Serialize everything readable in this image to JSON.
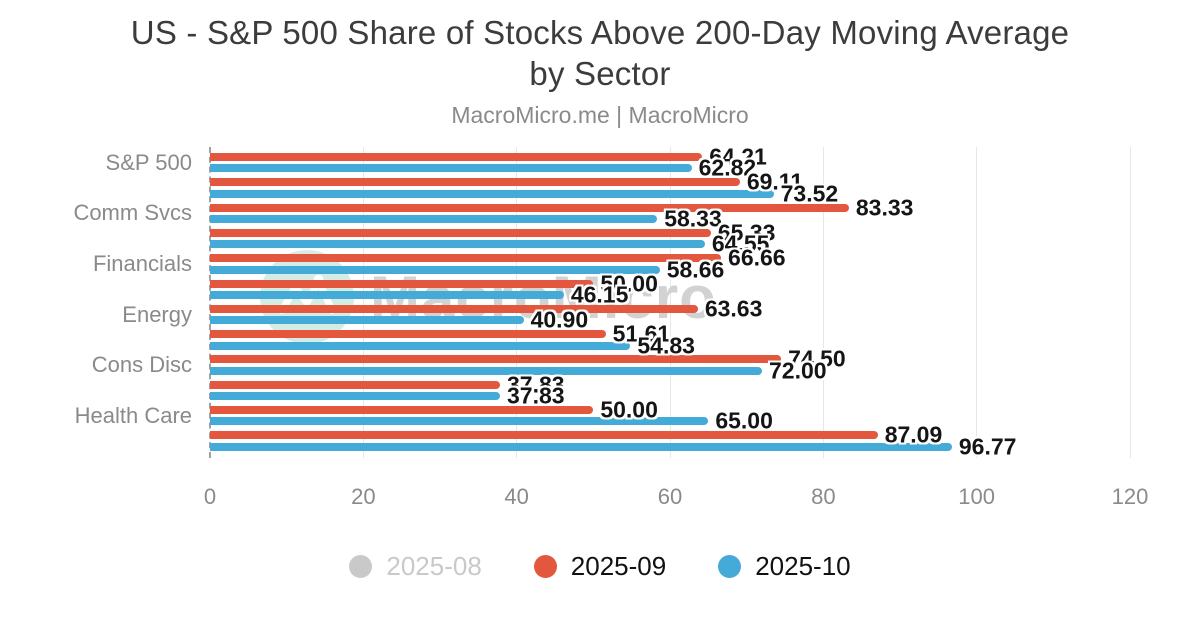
{
  "title": {
    "line1": "US - S&P 500 Share of Stocks Above 200-Day Moving Average",
    "line2": "by Sector"
  },
  "subtitle": "MacroMicro.me | MacroMicro",
  "watermark": {
    "text": "MacroMicro",
    "icon": "macromicro-logo"
  },
  "colors": {
    "series_red": "#e2573e",
    "series_blue": "#44abd9",
    "disabled_gray": "#c9c9c9",
    "grid": "#e7e7e7",
    "axis_dash": "#a2a2a2",
    "value_label": "#151515",
    "axis_text": "#8a8a8a",
    "title_text": "#3c3c3c",
    "watermark_mint": "#cdebe0",
    "watermark_gray": "#d2d2d2"
  },
  "legend": {
    "items": [
      {
        "label": "2025-08",
        "color": "#c9c9c9",
        "text_color": "#c9c9c9",
        "disabled": true
      },
      {
        "label": "2025-09",
        "color": "#e2573e",
        "text_color": "#111111",
        "disabled": false
      },
      {
        "label": "2025-10",
        "color": "#44abd9",
        "text_color": "#111111",
        "disabled": false
      }
    ]
  },
  "x_axis": {
    "ticks": [
      0,
      20,
      40,
      60,
      80,
      100,
      120
    ],
    "min": 0,
    "max": 120
  },
  "chart_data": {
    "type": "bar",
    "orientation": "horizontal",
    "title": "US - S&P 500 Share of Stocks Above 200-Day Moving Average by Sector",
    "subtitle": "MacroMicro.me | MacroMicro",
    "xlabel": "",
    "ylabel": "",
    "xlim": [
      0,
      120
    ],
    "grid": true,
    "legend_position": "bottom",
    "value_label_format": "0.00",
    "categories": [
      "S&P 500",
      "",
      "Comm Svcs",
      "",
      "Financials",
      "",
      "Energy",
      "",
      "Cons Disc",
      "",
      "Health Care",
      ""
    ],
    "visible_category_labels": [
      "S&P 500",
      "Comm Svcs",
      "Financials",
      "Energy",
      "Cons Disc",
      "Health Care"
    ],
    "series": [
      {
        "name": "2025-09",
        "color": "#e2573e",
        "values": [
          64.21,
          69.11,
          83.33,
          65.33,
          66.66,
          50.0,
          63.63,
          51.61,
          74.5,
          37.83,
          50.0,
          87.09
        ]
      },
      {
        "name": "2025-10",
        "color": "#44abd9",
        "values": [
          62.82,
          73.52,
          58.33,
          64.55,
          58.66,
          46.15,
          40.9,
          54.83,
          72.0,
          37.83,
          65.0,
          96.77
        ]
      }
    ],
    "hidden_series": [
      {
        "name": "2025-08",
        "color": "#c9c9c9"
      }
    ]
  }
}
